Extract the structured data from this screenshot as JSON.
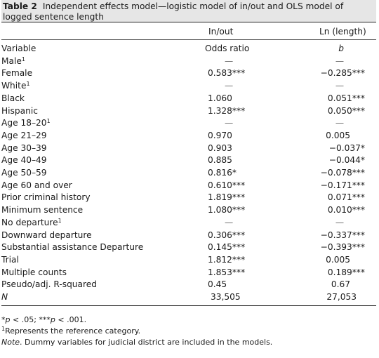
{
  "table": {
    "label": "Table 2",
    "title": "Independent effects model—logistic model of in/out and OLS model of logged sentence length",
    "col_groups": [
      "In/out",
      "Ln (length)"
    ],
    "col_headers": {
      "variable": "Variable",
      "odds": "Odds ratio",
      "b": "b"
    },
    "rows": [
      {
        "label": "Male",
        "ref": "1",
        "odds": "—",
        "b": "—"
      },
      {
        "label": "Female",
        "ref": "",
        "odds": "0.583***",
        "b": "−0.285***"
      },
      {
        "label": "White",
        "ref": "1",
        "odds": "—",
        "b": "—"
      },
      {
        "label": "Black",
        "ref": "",
        "odds": "1.060",
        "b": "0.051***"
      },
      {
        "label": "Hispanic",
        "ref": "",
        "odds": "1.328***",
        "b": "0.050***"
      },
      {
        "label": "Age 18–20",
        "ref": "1",
        "odds": "—",
        "b": "—"
      },
      {
        "label": "Age 21–29",
        "ref": "",
        "odds": "0.970",
        "b": "0.005"
      },
      {
        "label": "Age 30–39",
        "ref": "",
        "odds": "0.903",
        "b": "−0.037*"
      },
      {
        "label": "Age 40–49",
        "ref": "",
        "odds": "0.885",
        "b": "−0.044*"
      },
      {
        "label": "Age 50–59",
        "ref": "",
        "odds": "0.816*",
        "b": "−0.078***"
      },
      {
        "label": "Age 60 and over",
        "ref": "",
        "odds": "0.610***",
        "b": "−0.171***"
      },
      {
        "label": "Prior criminal history",
        "ref": "",
        "odds": "1.819***",
        "b": "0.071***"
      },
      {
        "label": "Minimum sentence",
        "ref": "",
        "odds": "1.080***",
        "b": "0.010***"
      },
      {
        "label": "No departure",
        "ref": "1",
        "odds": "—",
        "b": "—"
      },
      {
        "label": "Downward departure",
        "ref": "",
        "odds": "0.306***",
        "b": "−0.337***"
      },
      {
        "label": "Substantial assistance Departure",
        "ref": "",
        "odds": "0.145***",
        "b": "−0.393***"
      },
      {
        "label": "Trial",
        "ref": "",
        "odds": "1.812***",
        "b": "0.005"
      },
      {
        "label": "Multiple counts",
        "ref": "",
        "odds": "1.853***",
        "b": "0.189***"
      },
      {
        "label": "Pseudo/adj. R-squared",
        "ref": "",
        "odds": "0.45",
        "b": "0.67"
      }
    ],
    "n_row": {
      "label": "N",
      "odds": "33,505",
      "b": "27,053"
    },
    "notes": {
      "significance": "*p < .05; ***p < .001.",
      "reference": "Represents the reference category.",
      "reference_mark": "1",
      "note_label": "Note",
      "note_text": ". Dummy variables for judicial district are included in the models."
    }
  }
}
